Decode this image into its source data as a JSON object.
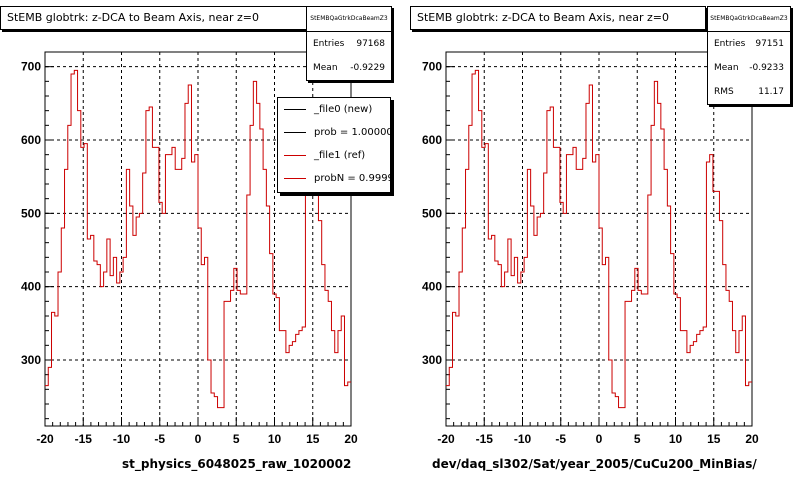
{
  "chart_data": [
    {
      "type": "step",
      "title": "StEMB globtrk: z-DCA to Beam Axis, near z=0",
      "xlabel": "st_physics_6048025_raw_1020002",
      "xlim": [
        -20,
        20
      ],
      "ylim": [
        210,
        720
      ],
      "x_ticks": [
        "-20",
        "-15",
        "-10",
        "-5",
        "0",
        "5",
        "10",
        "15",
        "20"
      ],
      "y_ticks": [
        "300",
        "400",
        "500",
        "600",
        "700"
      ],
      "grid": true,
      "stats": {
        "name": "StEMBQaGtrkDcaBeamZ3",
        "rows": [
          {
            "label": "Entries",
            "value": "97168"
          },
          {
            "label": "Mean",
            "value": "-0.9229"
          }
        ]
      },
      "legend": {
        "placement": "top-right",
        "entries": [
          {
            "label": "_file0 (new)",
            "color": "#000000"
          },
          {
            "label": "prob = 1.000000",
            "color": "#000000"
          },
          {
            "label": "_file1 (ref)",
            "color": "#cc0000"
          },
          {
            "label": "probN = 0.999966",
            "color": "#cc0000"
          }
        ]
      },
      "series": [
        {
          "name": "_file1 (ref)",
          "color": "#cc0000",
          "bin_edges": [
            -20,
            20
          ],
          "values": [
            265,
            290,
            365,
            360,
            420,
            480,
            560,
            620,
            690,
            695,
            640,
            590,
            595,
            465,
            470,
            435,
            430,
            400,
            420,
            465,
            415,
            440,
            405,
            420,
            440,
            560,
            510,
            470,
            495,
            500,
            555,
            640,
            645,
            590,
            590,
            515,
            500,
            580,
            580,
            590,
            560,
            560,
            575,
            650,
            675,
            570,
            580,
            480,
            430,
            440,
            300,
            255,
            250,
            235,
            235,
            380,
            380,
            395,
            425,
            395,
            390,
            390,
            525,
            620,
            680,
            650,
            615,
            560,
            510,
            445,
            390,
            385,
            340,
            340,
            310,
            320,
            325,
            335,
            340,
            345,
            570,
            580,
            530,
            530,
            490,
            430,
            395,
            380,
            340,
            310,
            340,
            360,
            265,
            270
          ]
        }
      ]
    },
    {
      "type": "step",
      "title": "StEMB globtrk: z-DCA to Beam Axis, near z=0",
      "xlabel": "dev/daq_sl302/Sat/year_2005/CuCu200_MinBias/",
      "xlim": [
        -20,
        20
      ],
      "ylim": [
        210,
        720
      ],
      "x_ticks": [
        "-20",
        "-15",
        "-10",
        "-5",
        "0",
        "5",
        "10",
        "15",
        "20"
      ],
      "y_ticks": [
        "300",
        "400",
        "500",
        "600",
        "700"
      ],
      "grid": true,
      "stats": {
        "name": "StEMBQaGtrkDcaBeamZ3",
        "rows": [
          {
            "label": "Entries",
            "value": "97151"
          },
          {
            "label": "Mean",
            "value": "-0.9233"
          },
          {
            "label": "RMS",
            "value": "11.17"
          }
        ]
      },
      "series": [
        {
          "name": "",
          "color": "#cc0000",
          "bin_edges": [
            -20,
            20
          ],
          "values": [
            265,
            290,
            365,
            360,
            420,
            480,
            560,
            620,
            690,
            695,
            640,
            590,
            595,
            465,
            470,
            435,
            430,
            400,
            420,
            465,
            415,
            440,
            405,
            420,
            440,
            560,
            510,
            470,
            495,
            500,
            555,
            640,
            645,
            590,
            590,
            515,
            500,
            580,
            580,
            590,
            560,
            560,
            575,
            650,
            675,
            570,
            580,
            480,
            430,
            440,
            300,
            255,
            250,
            235,
            235,
            380,
            380,
            395,
            425,
            395,
            390,
            390,
            525,
            620,
            680,
            650,
            615,
            560,
            510,
            445,
            390,
            385,
            340,
            340,
            310,
            320,
            325,
            335,
            340,
            345,
            570,
            580,
            530,
            530,
            490,
            430,
            395,
            380,
            340,
            310,
            340,
            360,
            265,
            270
          ]
        }
      ]
    }
  ]
}
